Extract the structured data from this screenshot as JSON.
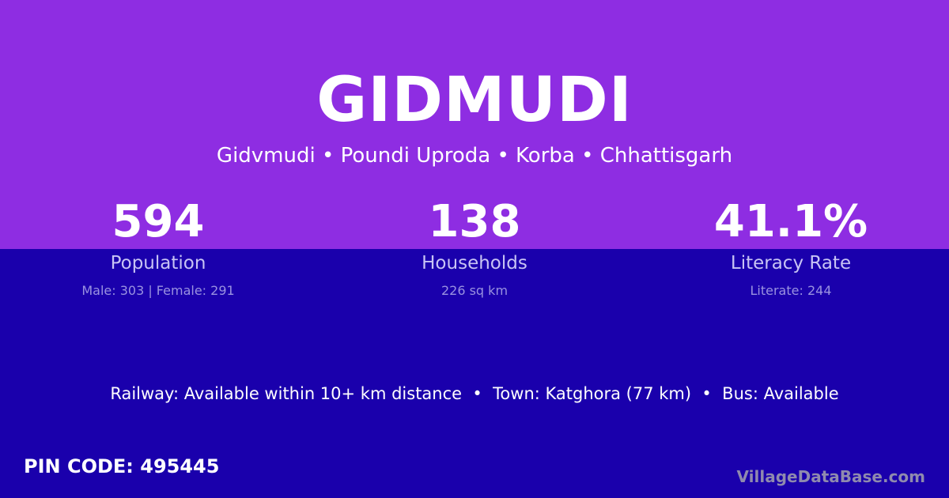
{
  "title": "GIDMUDI",
  "subtitle": "Gidvmudi • Poundi Uproda • Korba • Chhattisgarh",
  "stats": [
    {
      "value": "594",
      "label": "Population",
      "detail": "Male: 303 | Female: 291"
    },
    {
      "value": "138",
      "label": "Households",
      "detail": "226 sq km"
    },
    {
      "value": "41.1%",
      "label": "Literacy Rate",
      "detail": "Literate: 244"
    }
  ],
  "facts": "Railway: Available within 10+ km distance  •  Town: Katghora (77 km)  •  Bus: Available",
  "pin_code": "PIN CODE: 495445",
  "brand": "VillageDataBase.com",
  "colors": {
    "top_background": "#8e2de2",
    "bottom_background": "#1a00ac"
  }
}
